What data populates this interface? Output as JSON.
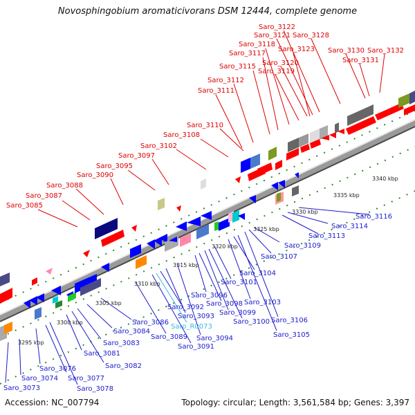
{
  "title": "Novosphingobium aromaticivorans DSM 12444, complete genome",
  "footer": {
    "accession": "Accession: NC_007794",
    "topology": "Topology: circular; Length: 3,561,584 bp; Genes: 3,397"
  },
  "colors": {
    "forward_label": "#dd0000",
    "reverse_label": "#1a1acc",
    "rna_label": "#33bbdd",
    "backbone": "#888888",
    "tick": "#2a8a2a"
  },
  "kbp_labels": [
    "3295 kbp",
    "3300 kbp",
    "3305 kbp",
    "3310 kbp",
    "3315 kbp",
    "3320 kbp",
    "3325 kbp",
    "3330 kbp",
    "3335 kbp",
    "3340 kbp"
  ],
  "forward_labels": [
    "Saro_3085",
    "Saro_3087",
    "Saro_3088",
    "Saro_3090",
    "Saro_3095",
    "Saro_3097",
    "Saro_3102",
    "Saro_3108",
    "Saro_3110",
    "Saro_3111",
    "Saro_3112",
    "Saro_3115",
    "Saro_3117",
    "Saro_3118",
    "Saro_3119",
    "Saro_3120",
    "Saro_3121",
    "Saro_3122",
    "Saro_3123",
    "Saro_3128",
    "Saro_3130",
    "Saro_3131",
    "Saro_3132"
  ],
  "reverse_labels": [
    "Saro_3073",
    "Saro_3074",
    "Saro_3076",
    "Saro_3077",
    "Saro_3078",
    "Saro_3081",
    "Saro_3082",
    "Saro_3083",
    "Saro_3084",
    "Saro_3086",
    "Saro_3089",
    "Saro_3091",
    "Saro_3092",
    "Saro_3093",
    "Saro_3094",
    "Saro_3096",
    "Saro_3098",
    "Saro_3099",
    "Saro_3100",
    "Saro_3101",
    "Saro_3103",
    "Saro_3104",
    "Saro_3105",
    "Saro_3106",
    "Saro_3107",
    "Saro_3109",
    "Saro_3113",
    "Saro_3114",
    "Saro_3116"
  ],
  "rna_labels": [
    "Saro_R0073"
  ]
}
